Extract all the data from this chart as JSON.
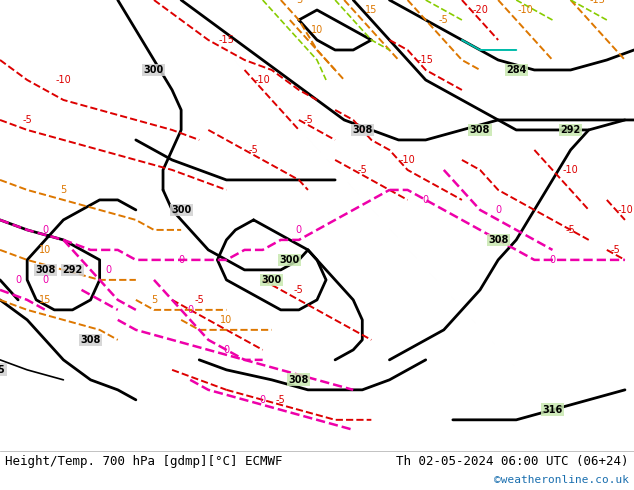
{
  "title_left": "Height/Temp. 700 hPa [gdmp][°C] ECMWF",
  "title_right": "Th 02-05-2024 06:00 UTC (06+24)",
  "credit": "©weatheronline.co.uk",
  "land_green": "#c8e6b0",
  "land_gray": "#b8b8b8",
  "ocean_color": "#d0d0d0",
  "border_color": "#888888",
  "bottom_bar_color": "#f2f2f2",
  "title_fontsize": 9,
  "credit_color": "#1a6faf",
  "figsize": [
    6.34,
    4.9
  ],
  "dpi": 100,
  "extent": [
    -25.0,
    45.0,
    27.0,
    72.0
  ]
}
